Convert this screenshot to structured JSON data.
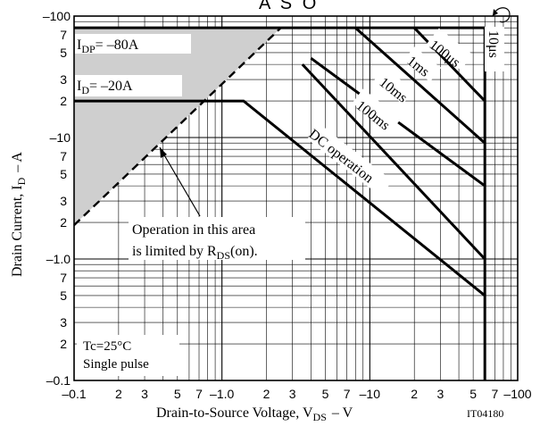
{
  "header_fragment": "A S O",
  "chart_data": {
    "type": "line",
    "xlabel": "Drain-to-Source Voltage, V",
    "xlabel_sub": "DS",
    "xlabel_unit": "–  V",
    "ylabel": "Drain Current, I",
    "ylabel_sub": "D",
    "ylabel_unit": "–  A",
    "x_scale": "log",
    "y_scale": "log",
    "xlim": [
      -0.1,
      -100
    ],
    "ylim": [
      -0.1,
      -100
    ],
    "grid": true,
    "x_major_labels": [
      "–0.1",
      "–1.0",
      "–10",
      "–100"
    ],
    "x_minor_labels": [
      "2",
      "3",
      "5",
      "7"
    ],
    "y_major_labels": [
      "–0.1",
      "–1.0",
      "–10",
      "–100"
    ],
    "y_minor_labels": [
      "2",
      "3",
      "5",
      "7"
    ],
    "figure_code": "IT04180",
    "conditions": [
      "Tc=25°C",
      "Single pulse"
    ],
    "limits": [
      {
        "label_main": "I",
        "label_sub": "DP",
        "label_rest": "= –80A",
        "value": -80
      },
      {
        "label_main": "I",
        "label_sub": "D",
        "label_rest": "= –20A",
        "value": -20
      }
    ],
    "rds_on_note": {
      "line1": "Operation in this area",
      "line2_pre": "is limited by R",
      "line2_sub": "DS",
      "line2_post": "(on)."
    },
    "vdss_limit": -60,
    "series": [
      {
        "name": "10μs",
        "x": [
          -60,
          -60
        ],
        "y": [
          -80,
          -0.1
        ]
      },
      {
        "name": "100μs",
        "x": [
          -20,
          -60
        ],
        "y": [
          -80,
          -20
        ]
      },
      {
        "name": "1ms",
        "x": [
          -8,
          -60
        ],
        "y": [
          -80,
          -9
        ]
      },
      {
        "name": "10ms",
        "x": [
          -4,
          -60
        ],
        "y": [
          -45,
          -4
        ]
      },
      {
        "name": "100ms",
        "x": [
          -3.5,
          -60
        ],
        "y": [
          -40,
          -1
        ]
      },
      {
        "name": "DC operation",
        "x": [
          -0.1,
          -1.0,
          -1.4,
          -60
        ],
        "y": [
          -20,
          -20,
          -20,
          -0.5
        ]
      },
      {
        "name": "RDS(on) limit",
        "x": [
          -0.1,
          -2.5
        ],
        "y": [
          -1.9,
          -80
        ]
      }
    ]
  }
}
